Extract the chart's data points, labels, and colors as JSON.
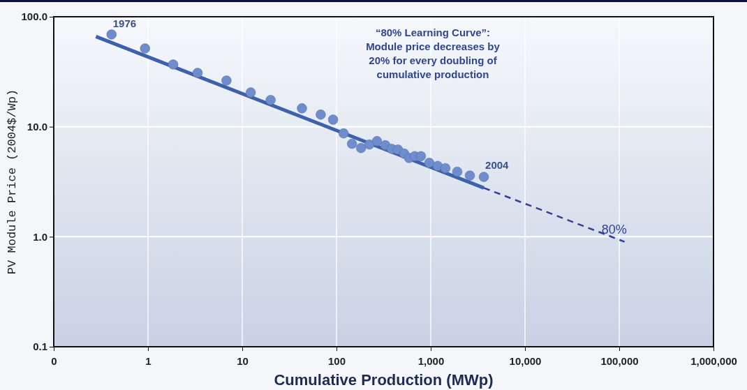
{
  "chart_data": {
    "type": "scatter",
    "xlabel": "Cumulative Production (MWp)",
    "ylabel": "PV Module Price (2004$/Wp)",
    "log": "xy",
    "grid": true,
    "xlim": [
      0.1,
      1000000
    ],
    "xticks": [
      {
        "value": 0.1,
        "label": "0"
      },
      1,
      10,
      100,
      {
        "value": 1000,
        "label": "1,000"
      },
      {
        "value": 10000,
        "label": "10,000"
      },
      {
        "value": 100000,
        "label": "100,000"
      },
      {
        "value": 1000000,
        "label": "1,000,000"
      }
    ],
    "ylim": [
      0.1,
      100
    ],
    "yticks": [
      0.1,
      {
        "value": 1,
        "label": "1.0"
      },
      {
        "value": 10,
        "label": "10.0"
      },
      {
        "value": 100,
        "label": "100.0"
      }
    ],
    "series": [
      {
        "marker": "circle",
        "color": "#6f8ccc",
        "x": [
          0.41,
          0.93,
          1.85,
          3.36,
          6.8,
          12.3,
          20,
          43,
          68,
          92,
          119,
          146,
          182,
          223,
          269,
          330,
          385,
          449,
          523,
          589,
          676,
          788,
          966,
          1186,
          1431,
          1910,
          2600,
          3660
        ],
        "values": [
          69,
          51.5,
          36.8,
          30.9,
          26.3,
          20.5,
          17.5,
          14.7,
          12.9,
          11.6,
          8.7,
          7.0,
          6.4,
          6.9,
          7.4,
          6.8,
          6.3,
          6.2,
          5.7,
          5.2,
          5.4,
          5.4,
          4.7,
          4.4,
          4.2,
          3.9,
          3.6,
          3.5
        ]
      },
      {
        "type": "line",
        "marker": "none",
        "color": "#3d62ab",
        "line_style": "solid",
        "x": [
          0.28,
          3660
        ],
        "values": [
          66,
          2.78
        ]
      },
      {
        "type": "line",
        "marker": "none",
        "color": "#343f9a",
        "line_style": "dashed",
        "x": [
          3660,
          114000
        ],
        "values": [
          2.78,
          0.9
        ]
      }
    ],
    "annotations": [
      {
        "text": "1976",
        "x": 0.41,
        "y": 69
      },
      {
        "text": "2004",
        "x": 3660,
        "y": 3.5
      },
      {
        "text": "80%",
        "x": 114000,
        "y": 0.9
      },
      "“80% Learning Curve”:\nModule price decreases by\n20% for every doubling of\ncumulative production"
    ]
  }
}
